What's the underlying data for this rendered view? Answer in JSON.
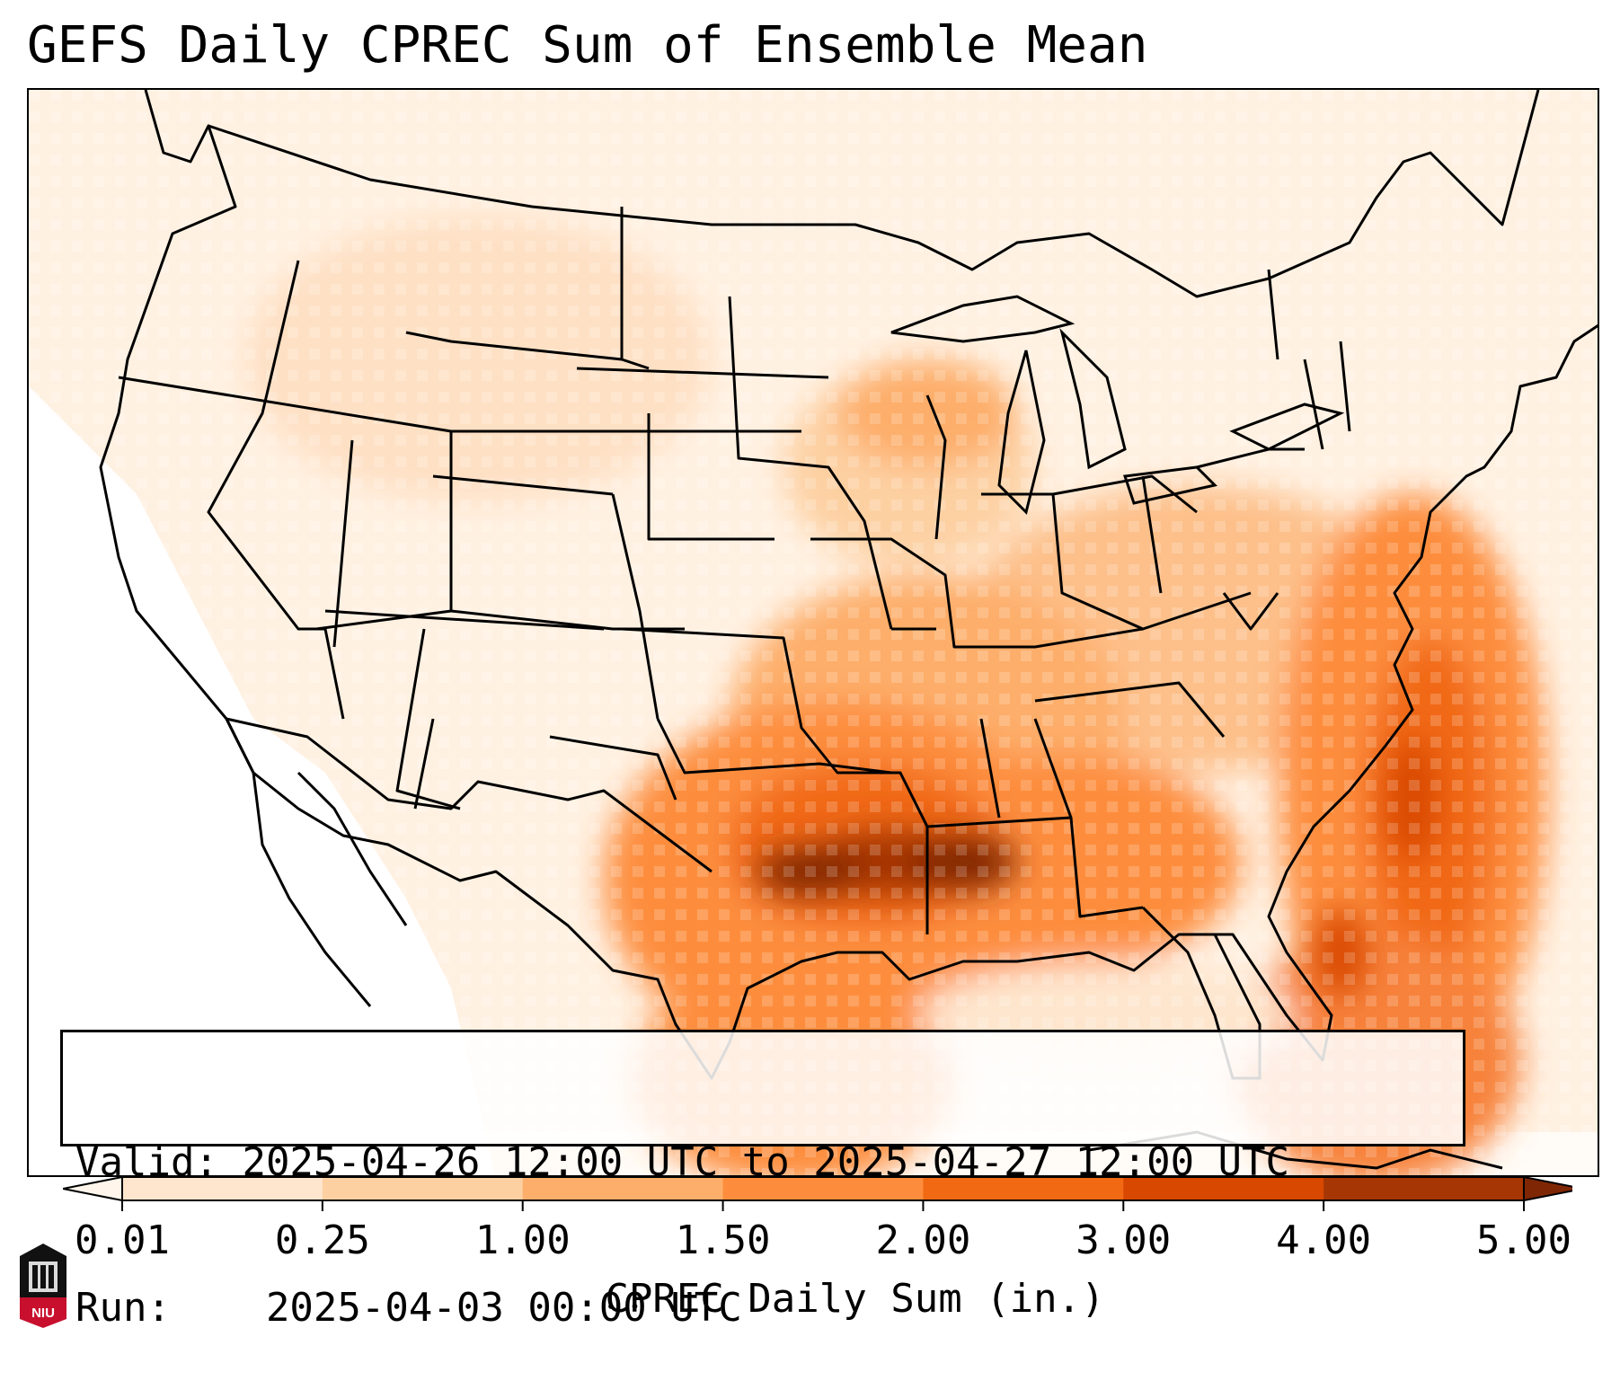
{
  "title": "GEFS Daily CPREC Sum of Ensemble Mean",
  "info": {
    "valid_label": "Valid:",
    "valid_value": "2025-04-26 12:00 UTC to 2025-04-27 12:00 UTC",
    "run_label": "Run:",
    "run_value": "2025-04-03 00:00 UTC"
  },
  "colorbar": {
    "label": "CPREC Daily Sum (in.)",
    "ticks": [
      "0.01",
      "0.25",
      "1.00",
      "1.50",
      "2.00",
      "3.00",
      "4.00",
      "5.00"
    ],
    "colors": [
      "#fff5eb",
      "#fee6ce",
      "#fdd0a2",
      "#fdae6b",
      "#fd8d3c",
      "#f16913",
      "#d94801",
      "#a63603",
      "#7f2704"
    ]
  },
  "logo": {
    "text": "NIU",
    "color": "#c8102e"
  },
  "map": {
    "region": "Contiguous United States",
    "precip_max_area": "Arkansas / Louisiana / Texas border",
    "secondary_max_area": "Atlantic off Carolinas and Georgia"
  }
}
